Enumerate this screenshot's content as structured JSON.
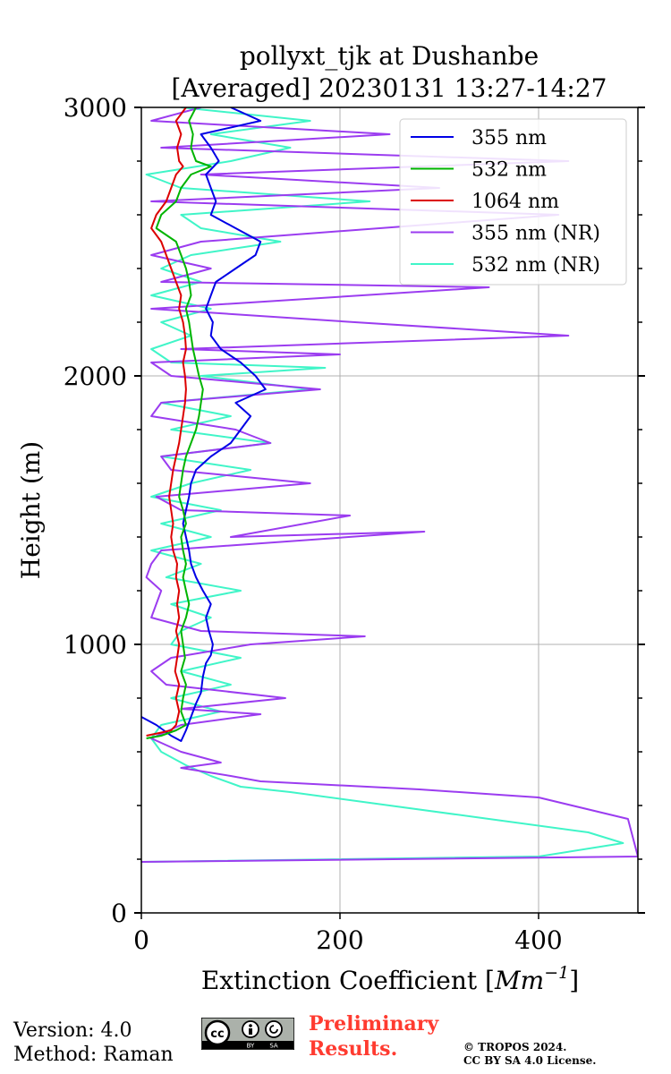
{
  "chart_data": {
    "type": "line",
    "title_line1": "pollyxt_tjk at Dushanbe",
    "title_line2": "[Averaged] 20230131 13:27-14:27",
    "xlabel_prefix": "Extinction Coefficient [",
    "xlabel_unit": "Mm",
    "xlabel_exp": "−1",
    "xlabel_suffix": "]",
    "ylabel": "Height (m)",
    "xlim": [
      0,
      500
    ],
    "ylim": [
      0,
      3000
    ],
    "xticks": [
      0,
      200,
      400
    ],
    "xtick_labels": [
      "0",
      "200",
      "400"
    ],
    "yticks": [
      0,
      1000,
      2000,
      3000
    ],
    "ytick_labels": [
      "0",
      "1000",
      "2000",
      "3000"
    ],
    "grid": true,
    "legend_position": "top-right",
    "series": [
      {
        "name": "355 nm",
        "color": "#0000e6",
        "points": [
          [
            0,
            730
          ],
          [
            15,
            700
          ],
          [
            30,
            660
          ],
          [
            40,
            640
          ],
          [
            45,
            680
          ],
          [
            50,
            730
          ],
          [
            55,
            780
          ],
          [
            60,
            820
          ],
          [
            62,
            880
          ],
          [
            65,
            930
          ],
          [
            70,
            960
          ],
          [
            72,
            1000
          ],
          [
            68,
            1050
          ],
          [
            65,
            1100
          ],
          [
            70,
            1150
          ],
          [
            62,
            1200
          ],
          [
            55,
            1250
          ],
          [
            50,
            1300
          ],
          [
            48,
            1350
          ],
          [
            45,
            1400
          ],
          [
            42,
            1450
          ],
          [
            45,
            1500
          ],
          [
            48,
            1550
          ],
          [
            50,
            1600
          ],
          [
            55,
            1650
          ],
          [
            70,
            1700
          ],
          [
            90,
            1750
          ],
          [
            100,
            1800
          ],
          [
            110,
            1850
          ],
          [
            95,
            1900
          ],
          [
            125,
            1950
          ],
          [
            115,
            2000
          ],
          [
            100,
            2050
          ],
          [
            80,
            2100
          ],
          [
            70,
            2150
          ],
          [
            72,
            2200
          ],
          [
            65,
            2250
          ],
          [
            70,
            2300
          ],
          [
            75,
            2350
          ],
          [
            95,
            2400
          ],
          [
            115,
            2450
          ],
          [
            120,
            2500
          ],
          [
            95,
            2550
          ],
          [
            70,
            2600
          ],
          [
            75,
            2650
          ],
          [
            70,
            2700
          ],
          [
            65,
            2750
          ],
          [
            78,
            2800
          ],
          [
            70,
            2850
          ],
          [
            60,
            2900
          ],
          [
            120,
            2950
          ],
          [
            90,
            3000
          ]
        ]
      },
      {
        "name": "532 nm",
        "color": "#00b400",
        "points": [
          [
            5,
            650
          ],
          [
            20,
            660
          ],
          [
            35,
            680
          ],
          [
            45,
            700
          ],
          [
            40,
            750
          ],
          [
            42,
            800
          ],
          [
            45,
            850
          ],
          [
            40,
            900
          ],
          [
            44,
            950
          ],
          [
            42,
            1000
          ],
          [
            40,
            1050
          ],
          [
            45,
            1100
          ],
          [
            48,
            1150
          ],
          [
            45,
            1200
          ],
          [
            42,
            1250
          ],
          [
            45,
            1300
          ],
          [
            42,
            1350
          ],
          [
            40,
            1400
          ],
          [
            45,
            1450
          ],
          [
            42,
            1500
          ],
          [
            38,
            1550
          ],
          [
            40,
            1600
          ],
          [
            42,
            1650
          ],
          [
            45,
            1700
          ],
          [
            50,
            1750
          ],
          [
            55,
            1800
          ],
          [
            58,
            1850
          ],
          [
            60,
            1900
          ],
          [
            62,
            1950
          ],
          [
            58,
            2000
          ],
          [
            55,
            2050
          ],
          [
            52,
            2100
          ],
          [
            50,
            2150
          ],
          [
            48,
            2200
          ],
          [
            45,
            2250
          ],
          [
            50,
            2300
          ],
          [
            48,
            2350
          ],
          [
            45,
            2400
          ],
          [
            40,
            2450
          ],
          [
            35,
            2500
          ],
          [
            15,
            2550
          ],
          [
            20,
            2600
          ],
          [
            35,
            2650
          ],
          [
            40,
            2700
          ],
          [
            50,
            2750
          ],
          [
            70,
            2780
          ],
          [
            55,
            2800
          ],
          [
            50,
            2850
          ],
          [
            52,
            2900
          ],
          [
            48,
            2950
          ],
          [
            55,
            3000
          ]
        ]
      },
      {
        "name": "1064 nm",
        "color": "#dc0000",
        "points": [
          [
            5,
            660
          ],
          [
            18,
            670
          ],
          [
            30,
            680
          ],
          [
            35,
            700
          ],
          [
            38,
            750
          ],
          [
            35,
            800
          ],
          [
            38,
            850
          ],
          [
            34,
            900
          ],
          [
            36,
            950
          ],
          [
            38,
            1000
          ],
          [
            35,
            1050
          ],
          [
            38,
            1100
          ],
          [
            36,
            1150
          ],
          [
            38,
            1200
          ],
          [
            35,
            1250
          ],
          [
            36,
            1300
          ],
          [
            32,
            1350
          ],
          [
            30,
            1400
          ],
          [
            32,
            1450
          ],
          [
            30,
            1500
          ],
          [
            28,
            1550
          ],
          [
            30,
            1600
          ],
          [
            32,
            1650
          ],
          [
            35,
            1700
          ],
          [
            38,
            1750
          ],
          [
            40,
            1800
          ],
          [
            42,
            1850
          ],
          [
            44,
            1900
          ],
          [
            45,
            1950
          ],
          [
            44,
            2000
          ],
          [
            42,
            2050
          ],
          [
            45,
            2100
          ],
          [
            44,
            2150
          ],
          [
            42,
            2200
          ],
          [
            38,
            2250
          ],
          [
            40,
            2300
          ],
          [
            35,
            2350
          ],
          [
            30,
            2400
          ],
          [
            25,
            2450
          ],
          [
            20,
            2500
          ],
          [
            10,
            2550
          ],
          [
            15,
            2600
          ],
          [
            25,
            2650
          ],
          [
            30,
            2700
          ],
          [
            35,
            2750
          ],
          [
            42,
            2780
          ],
          [
            38,
            2800
          ],
          [
            36,
            2850
          ],
          [
            40,
            2900
          ],
          [
            35,
            2950
          ],
          [
            45,
            3000
          ]
        ]
      },
      {
        "name": "355 nm (NR)",
        "color": "#9b3cf0",
        "points": [
          [
            0,
            190
          ],
          [
            500,
            210
          ],
          [
            490,
            350
          ],
          [
            400,
            430
          ],
          [
            280,
            460
          ],
          [
            120,
            490
          ],
          [
            90,
            510
          ],
          [
            40,
            540
          ],
          [
            80,
            560
          ],
          [
            40,
            600
          ],
          [
            10,
            650
          ],
          [
            40,
            700
          ],
          [
            120,
            740
          ],
          [
            40,
            760
          ],
          [
            145,
            800
          ],
          [
            25,
            850
          ],
          [
            10,
            900
          ],
          [
            30,
            950
          ],
          [
            110,
            1000
          ],
          [
            225,
            1030
          ],
          [
            60,
            1050
          ],
          [
            10,
            1100
          ],
          [
            20,
            1200
          ],
          [
            5,
            1250
          ],
          [
            10,
            1300
          ],
          [
            20,
            1350
          ],
          [
            285,
            1420
          ],
          [
            90,
            1400
          ],
          [
            210,
            1480
          ],
          [
            40,
            1500
          ],
          [
            15,
            1550
          ],
          [
            170,
            1600
          ],
          [
            30,
            1650
          ],
          [
            20,
            1700
          ],
          [
            130,
            1750
          ],
          [
            95,
            1800
          ],
          [
            10,
            1850
          ],
          [
            20,
            1900
          ],
          [
            180,
            1950
          ],
          [
            30,
            2000
          ],
          [
            10,
            2050
          ],
          [
            200,
            2080
          ],
          [
            40,
            2100
          ],
          [
            430,
            2150
          ],
          [
            215,
            2200
          ],
          [
            10,
            2250
          ],
          [
            350,
            2330
          ],
          [
            20,
            2350
          ],
          [
            70,
            2400
          ],
          [
            10,
            2450
          ],
          [
            60,
            2500
          ],
          [
            420,
            2600
          ],
          [
            10,
            2650
          ],
          [
            300,
            2700
          ],
          [
            60,
            2750
          ],
          [
            430,
            2800
          ],
          [
            20,
            2850
          ],
          [
            250,
            2900
          ],
          [
            10,
            2950
          ],
          [
            60,
            3000
          ]
        ]
      },
      {
        "name": "532 nm (NR)",
        "color": "#40f5c8",
        "points": [
          [
            0,
            190
          ],
          [
            400,
            210
          ],
          [
            485,
            260
          ],
          [
            450,
            300
          ],
          [
            350,
            350
          ],
          [
            250,
            400
          ],
          [
            150,
            450
          ],
          [
            100,
            470
          ],
          [
            70,
            510
          ],
          [
            45,
            550
          ],
          [
            20,
            600
          ],
          [
            10,
            650
          ],
          [
            20,
            700
          ],
          [
            80,
            750
          ],
          [
            30,
            800
          ],
          [
            90,
            850
          ],
          [
            40,
            900
          ],
          [
            100,
            950
          ],
          [
            30,
            1000
          ],
          [
            40,
            1050
          ],
          [
            70,
            1100
          ],
          [
            30,
            1150
          ],
          [
            100,
            1200
          ],
          [
            25,
            1250
          ],
          [
            60,
            1300
          ],
          [
            10,
            1350
          ],
          [
            70,
            1400
          ],
          [
            20,
            1450
          ],
          [
            80,
            1500
          ],
          [
            10,
            1550
          ],
          [
            50,
            1600
          ],
          [
            110,
            1650
          ],
          [
            20,
            1700
          ],
          [
            130,
            1750
          ],
          [
            30,
            1800
          ],
          [
            90,
            1850
          ],
          [
            20,
            1900
          ],
          [
            170,
            1950
          ],
          [
            60,
            2000
          ],
          [
            185,
            2030
          ],
          [
            30,
            2050
          ],
          [
            10,
            2100
          ],
          [
            50,
            2150
          ],
          [
            20,
            2200
          ],
          [
            70,
            2250
          ],
          [
            10,
            2300
          ],
          [
            60,
            2350
          ],
          [
            20,
            2400
          ],
          [
            50,
            2450
          ],
          [
            140,
            2500
          ],
          [
            60,
            2550
          ],
          [
            40,
            2600
          ],
          [
            230,
            2650
          ],
          [
            40,
            2700
          ],
          [
            5,
            2750
          ],
          [
            90,
            2800
          ],
          [
            150,
            2850
          ],
          [
            70,
            2900
          ],
          [
            170,
            2950
          ],
          [
            40,
            3000
          ]
        ]
      }
    ]
  },
  "footer": {
    "version": "Version: 4.0",
    "method": "Method: Raman",
    "preliminary_line1": "Preliminary",
    "preliminary_line2": "Results.",
    "copyright_line1": "© TROPOS 2024.",
    "copyright_line2": "CC BY SA 4.0 License.",
    "license_badge": "cc-by-sa-icon",
    "badge_cc": "cc",
    "badge_by": "BY",
    "badge_sa": "SA"
  }
}
